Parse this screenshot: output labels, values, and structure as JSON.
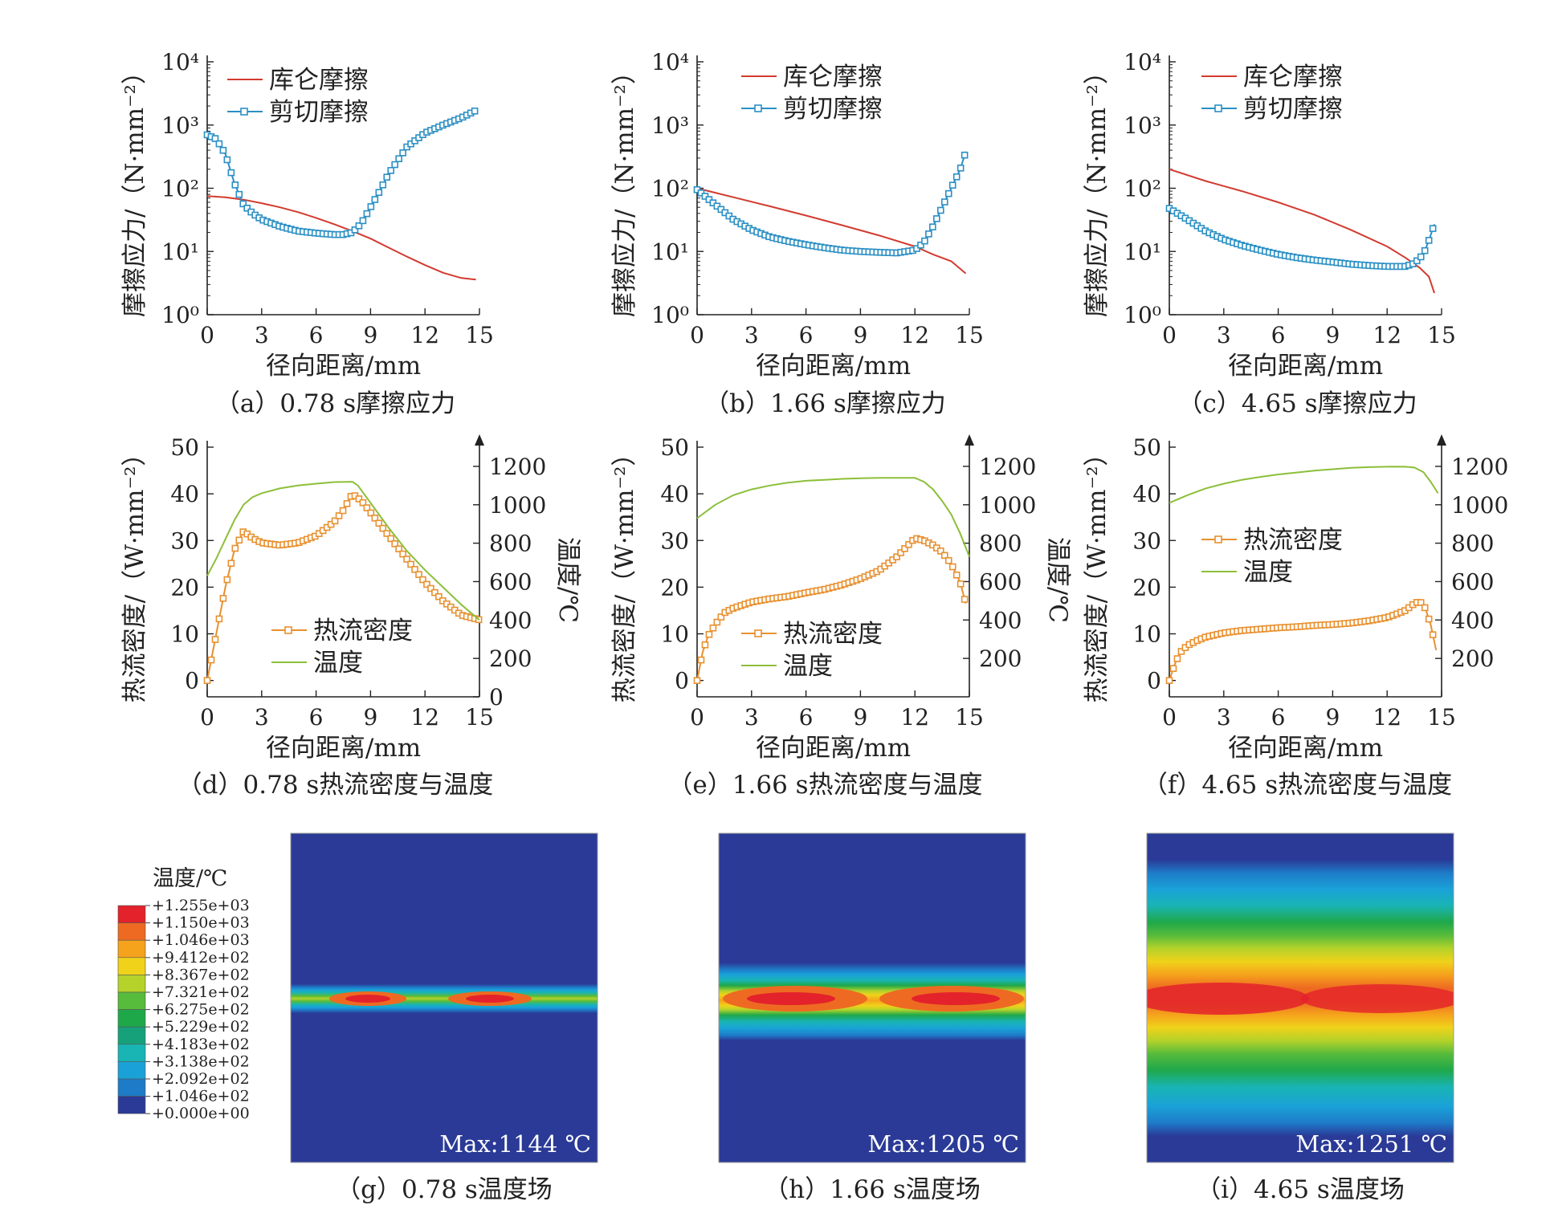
{
  "chart_data": [
    {
      "id": "a",
      "type": "line",
      "caption": "（a）0.78 s摩擦应力",
      "xlabel": "径向距离/mm",
      "ylabel": "摩擦应力/（N·mm⁻²）",
      "yscale": "log",
      "xlim": [
        0,
        15
      ],
      "ylim": [
        1,
        10000
      ],
      "xticks": [
        "0",
        "3",
        "6",
        "9",
        "12",
        "15"
      ],
      "yticks": [
        "10⁰",
        "10¹",
        "10²",
        "10³",
        "10⁴"
      ],
      "legend_position": "top-left",
      "series": [
        {
          "name": "库仑摩擦",
          "color": "#d23b2f",
          "marker": "none",
          "x": [
            0,
            1,
            2,
            3,
            4,
            5,
            6,
            7,
            8,
            9,
            10,
            11,
            12,
            13,
            14,
            14.8
          ],
          "y": [
            75,
            72,
            66,
            58,
            50,
            42,
            34,
            27,
            21,
            16,
            11.5,
            8.3,
            6.1,
            4.6,
            3.8,
            3.6
          ]
        },
        {
          "name": "剪切摩擦",
          "color": "#2a8fc4",
          "marker": "square",
          "x": [
            0,
            0.5,
            1,
            1.5,
            2,
            2.5,
            3,
            4,
            5,
            6,
            7,
            7.5,
            8,
            8.5,
            9,
            9.5,
            10,
            11,
            12,
            13,
            14,
            14.8
          ],
          "y": [
            700,
            600,
            350,
            120,
            55,
            40,
            32,
            25,
            21,
            19.5,
            18.5,
            18.5,
            20,
            28,
            50,
            90,
            170,
            450,
            750,
            1000,
            1300,
            1700
          ]
        }
      ]
    },
    {
      "id": "b",
      "type": "line",
      "caption": "（b）1.66 s摩擦应力",
      "xlabel": "径向距离/mm",
      "ylabel": "摩擦应力/（N·mm⁻²）",
      "yscale": "log",
      "xlim": [
        0,
        15
      ],
      "ylim": [
        1,
        10000
      ],
      "xticks": [
        "0",
        "3",
        "6",
        "9",
        "12",
        "15"
      ],
      "yticks": [
        "10⁰",
        "10¹",
        "10²",
        "10³",
        "10⁴"
      ],
      "legend_position": "top-right",
      "series": [
        {
          "name": "库仑摩擦",
          "color": "#d23b2f",
          "marker": "none",
          "x": [
            0,
            2,
            4,
            6,
            8,
            10,
            12,
            13,
            14,
            14.8
          ],
          "y": [
            100,
            72,
            52,
            37,
            26,
            18,
            12,
            9,
            7,
            4.5
          ]
        },
        {
          "name": "剪切摩擦",
          "color": "#2a8fc4",
          "marker": "square",
          "x": [
            0,
            1,
            2,
            3,
            4,
            5,
            6,
            7,
            8,
            9,
            10,
            11,
            12,
            12.5,
            13,
            13.5,
            14,
            14.5,
            14.8
          ],
          "y": [
            95,
            55,
            32,
            22,
            17,
            14.5,
            12.8,
            11.5,
            10.5,
            10,
            9.7,
            9.5,
            10.5,
            14,
            25,
            50,
            100,
            200,
            380
          ]
        }
      ]
    },
    {
      "id": "c",
      "type": "line",
      "caption": "（c）4.65 s摩擦应力",
      "xlabel": "径向距离/mm",
      "ylabel": "摩擦应力/（N·mm⁻²）",
      "yscale": "log",
      "xlim": [
        0,
        15
      ],
      "ylim": [
        1,
        10000
      ],
      "xticks": [
        "0",
        "3",
        "6",
        "9",
        "12",
        "15"
      ],
      "yticks": [
        "10⁰",
        "10¹",
        "10²",
        "10³",
        "10⁴"
      ],
      "legend_position": "top-right",
      "series": [
        {
          "name": "库仑摩擦",
          "color": "#d23b2f",
          "marker": "none",
          "x": [
            0,
            2,
            4,
            6,
            8,
            10,
            12,
            13,
            13.8,
            14.3,
            14.6
          ],
          "y": [
            200,
            130,
            90,
            60,
            38,
            22,
            12,
            8,
            5.5,
            4,
            2.2
          ]
        },
        {
          "name": "剪切摩擦",
          "color": "#2a8fc4",
          "marker": "square",
          "x": [
            0,
            1,
            2,
            3,
            4,
            5,
            6,
            7,
            8,
            9,
            10,
            11,
            12,
            13,
            13.5,
            14,
            14.3,
            14.6
          ],
          "y": [
            48,
            32,
            21,
            15.5,
            12.5,
            10.5,
            9,
            8,
            7.3,
            6.8,
            6.3,
            6,
            5.8,
            5.8,
            6.5,
            9,
            15,
            27
          ]
        }
      ]
    },
    {
      "id": "d",
      "type": "line",
      "caption": "（d）0.78 s热流密度与温度",
      "xlabel": "径向距离/mm",
      "ylabel": "热流密度/（W·mm⁻²）",
      "y2label": "温度/℃",
      "xlim": [
        0,
        15
      ],
      "ylim": [
        -3.5,
        50
      ],
      "y2lim": [
        0,
        1300
      ],
      "xticks": [
        "0",
        "3",
        "6",
        "9",
        "12",
        "15"
      ],
      "yticks": [
        "0",
        "10",
        "20",
        "30",
        "40",
        "50"
      ],
      "y2ticks": [
        "0",
        "200",
        "400",
        "600",
        "800",
        "1000",
        "1200"
      ],
      "legend_position": "bottom-center",
      "series": [
        {
          "name": "热流密度",
          "color": "#e8902f",
          "marker": "square",
          "axis": "left",
          "x": [
            0,
            0.5,
            1,
            1.5,
            2,
            2.5,
            3,
            4,
            5,
            6,
            7,
            7.5,
            8,
            8.5,
            9,
            10,
            11,
            12,
            13,
            14,
            15
          ],
          "y": [
            0,
            10,
            20,
            28,
            32,
            30.5,
            29.5,
            29,
            29.5,
            31,
            34,
            36.5,
            40,
            38.5,
            36,
            31,
            26,
            21,
            17,
            14,
            13
          ]
        },
        {
          "name": "温度",
          "color": "#8cbf3a",
          "marker": "none",
          "axis": "right",
          "x": [
            0,
            0.5,
            1,
            1.5,
            2,
            2.5,
            3,
            4,
            5,
            6,
            7,
            8,
            8.3,
            9,
            10,
            11,
            12,
            13,
            14,
            15
          ],
          "y": [
            630,
            720,
            820,
            920,
            1000,
            1040,
            1060,
            1085,
            1100,
            1110,
            1118,
            1120,
            1100,
            1010,
            880,
            760,
            660,
            570,
            480,
            400
          ]
        }
      ]
    },
    {
      "id": "e",
      "type": "line",
      "caption": "（e）1.66 s热流密度与温度",
      "xlabel": "径向距离/mm",
      "ylabel": "热流密度/（W·mm⁻²）",
      "y2label": "温度/℃",
      "xlim": [
        0,
        15
      ],
      "ylim": [
        -3.5,
        50
      ],
      "y2lim": [
        0,
        1300
      ],
      "xticks": [
        "0",
        "3",
        "6",
        "9",
        "12",
        "15"
      ],
      "yticks": [
        "0",
        "10",
        "20",
        "30",
        "40",
        "50"
      ],
      "y2ticks": [
        "200",
        "400",
        "600",
        "800",
        "1000",
        "1200"
      ],
      "legend_position": "bottom-center",
      "series": [
        {
          "name": "热流密度",
          "color": "#e8902f",
          "marker": "square",
          "axis": "left",
          "x": [
            0,
            0.3,
            0.6,
            1,
            1.5,
            2,
            3,
            4,
            5,
            6,
            7,
            8,
            9,
            10,
            11,
            11.5,
            12,
            12.5,
            13,
            13.5,
            14,
            14.5,
            14.8
          ],
          "y": [
            0,
            6,
            9.5,
            12,
            14.5,
            15.5,
            16.8,
            17.5,
            18,
            18.8,
            19.5,
            20.5,
            21.8,
            23.5,
            26.5,
            28.5,
            30.5,
            30,
            29,
            27.5,
            25,
            21,
            16.5
          ]
        },
        {
          "name": "温度",
          "color": "#8cbf3a",
          "marker": "none",
          "axis": "right",
          "x": [
            0,
            1,
            2,
            3,
            4,
            5,
            6,
            7,
            8,
            9,
            10,
            11,
            12,
            12.5,
            13,
            13.5,
            14,
            14.5,
            15
          ],
          "y": [
            930,
            1000,
            1050,
            1080,
            1100,
            1115,
            1125,
            1130,
            1135,
            1138,
            1140,
            1140,
            1140,
            1120,
            1080,
            1020,
            950,
            850,
            730
          ]
        }
      ]
    },
    {
      "id": "f",
      "type": "line",
      "caption": "（f）4.65 s热流密度与温度",
      "xlabel": "径向距离/mm",
      "ylabel": "热流密度/（W·mm⁻²）",
      "xlim": [
        0,
        15
      ],
      "ylim": [
        -3.5,
        50
      ],
      "y2lim": [
        0,
        1300
      ],
      "xticks": [
        "0",
        "3",
        "6",
        "9",
        "12",
        "15"
      ],
      "yticks": [
        "0",
        "10",
        "20",
        "30",
        "40",
        "50"
      ],
      "y2ticks": [
        "200",
        "400",
        "600",
        "800",
        "1000",
        "1200"
      ],
      "legend_position": "center-left",
      "series": [
        {
          "name": "热流密度",
          "color": "#e8902f",
          "marker": "square",
          "axis": "left",
          "x": [
            0,
            0.3,
            0.6,
            1,
            1.5,
            2,
            3,
            4,
            5,
            6,
            7,
            8,
            9,
            10,
            11,
            12,
            12.5,
            13,
            13.5,
            13.8,
            14.1,
            14.4,
            14.7
          ],
          "y": [
            0,
            3.5,
            6,
            7.5,
            8.5,
            9.3,
            10.2,
            10.7,
            11,
            11.3,
            11.5,
            11.8,
            12,
            12.3,
            12.8,
            13.5,
            14.2,
            15,
            16.5,
            17,
            15.5,
            12,
            6.5
          ]
        },
        {
          "name": "温度",
          "color": "#8cbf3a",
          "marker": "none",
          "axis": "right",
          "x": [
            0,
            1,
            2,
            3,
            4,
            5,
            6,
            7,
            8,
            9,
            10,
            11,
            12,
            12.5,
            13,
            13.5,
            14,
            14.4,
            14.8
          ],
          "y": [
            1010,
            1050,
            1085,
            1110,
            1130,
            1145,
            1158,
            1168,
            1178,
            1185,
            1192,
            1196,
            1198,
            1199,
            1198,
            1194,
            1170,
            1120,
            1060
          ]
        }
      ]
    }
  ],
  "legend_labels": {
    "coulomb": "库仑摩擦",
    "shear": "剪切摩擦",
    "heat_flux": "热流密度",
    "temperature": "温度"
  },
  "temperature_fields": [
    {
      "id": "g",
      "caption": "（g）0.78 s温度场",
      "max_label": "Max:1144 ℃"
    },
    {
      "id": "h",
      "caption": "（h）1.66 s温度场",
      "max_label": "Max:1205 ℃"
    },
    {
      "id": "i",
      "caption": "（i）4.65 s温度场",
      "max_label": "Max:1251 ℃"
    }
  ],
  "colorbar": {
    "title": "温度/℃",
    "labels": [
      "+1.255e+03",
      "+1.150e+03",
      "+1.046e+03",
      "+9.412e+02",
      "+8.367e+02",
      "+7.321e+02",
      "+6.275e+02",
      "+5.229e+02",
      "+4.183e+02",
      "+3.138e+02",
      "+2.092e+02",
      "+1.046e+02",
      "+0.000e+00"
    ],
    "colors": [
      "#e3222b",
      "#ee6a22",
      "#f5a21c",
      "#f0d21a",
      "#b4d22a",
      "#57bb3b",
      "#1fa84a",
      "#17a17a",
      "#19b4b4",
      "#1aa2d8",
      "#1e7bc8",
      "#2a3a96"
    ]
  }
}
